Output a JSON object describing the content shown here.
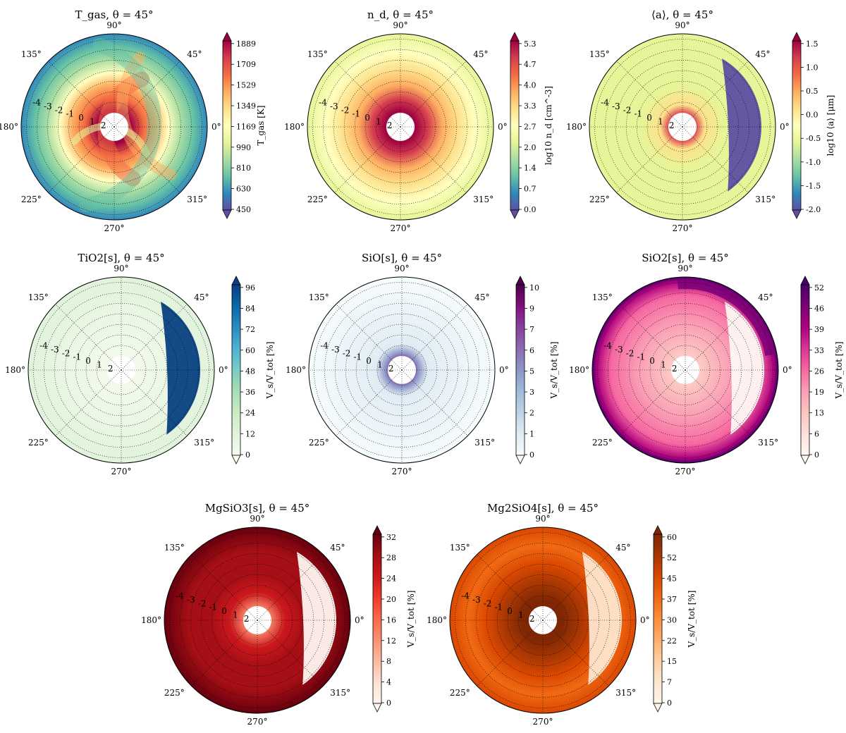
{
  "chart_data": [
    {
      "type": "heatmap",
      "title": "T_gas, θ = 45°",
      "cbar_label": "T_gas [K]",
      "cbar_ticks": [
        "450",
        "630",
        "810",
        "990",
        "1169",
        "1349",
        "1529",
        "1709",
        "1889"
      ],
      "colormap": [
        "#5e4fa2",
        "#3288bd",
        "#66c2a5",
        "#abdda4",
        "#e6f598",
        "#ffffbf",
        "#fee08b",
        "#fdae61",
        "#f46d43",
        "#d53e4f",
        "#9e0142"
      ],
      "angle_labels": [
        "90°",
        "45°",
        "0°",
        "315°",
        "270°",
        "225°",
        "180°",
        "135°"
      ],
      "r_labels": [
        "-4",
        "-3",
        "-2",
        "-1",
        "0",
        "1",
        "2"
      ]
    },
    {
      "type": "heatmap",
      "title": "n_d, θ = 45°",
      "cbar_label": "log10 n_d [cm^-3]",
      "cbar_ticks": [
        "0.0",
        "0.7",
        "1.4",
        "2.0",
        "2.7",
        "3.3",
        "4.0",
        "4.7",
        "5.3"
      ],
      "colormap": [
        "#5e4fa2",
        "#3288bd",
        "#66c2a5",
        "#abdda4",
        "#e6f598",
        "#ffffbf",
        "#fee08b",
        "#fdae61",
        "#f46d43",
        "#d53e4f",
        "#9e0142"
      ],
      "angle_labels": [
        "90°",
        "45°",
        "0°",
        "315°",
        "270°",
        "225°",
        "180°",
        "135°"
      ],
      "r_labels": [
        "-4",
        "-3",
        "-2",
        "-1",
        "0",
        "1",
        "2"
      ]
    },
    {
      "type": "heatmap",
      "title": "⟨a⟩, θ = 45°",
      "cbar_label": "log10 ⟨a⟩ [μm]",
      "cbar_ticks": [
        "-2.0",
        "-1.5",
        "-1.0",
        "-0.5",
        "0.0",
        "0.5",
        "1.0",
        "1.5"
      ],
      "colormap": [
        "#5e4fa2",
        "#3288bd",
        "#66c2a5",
        "#abdda4",
        "#e6f598",
        "#ffffbf",
        "#fee08b",
        "#fdae61",
        "#f46d43",
        "#d53e4f",
        "#9e0142"
      ],
      "angle_labels": [
        "90°",
        "45°",
        "0°",
        "315°",
        "270°",
        "225°",
        "180°",
        "135°"
      ],
      "r_labels": [
        "-4",
        "-3",
        "-2",
        "-1",
        "0",
        "1",
        "2"
      ]
    },
    {
      "type": "heatmap",
      "title": "TiO2[s], θ = 45°",
      "cbar_label": "V_s/V_tot [%]",
      "cbar_ticks": [
        "0",
        "12",
        "24",
        "36",
        "48",
        "60",
        "72",
        "84",
        "96"
      ],
      "colormap": [
        "#f7fcf0",
        "#e0f3db",
        "#ccebc5",
        "#a8ddb5",
        "#7bccc4",
        "#4eb3d3",
        "#2b8cbe",
        "#0868ac",
        "#084081"
      ],
      "angle_labels": [
        "90°",
        "45°",
        "0°",
        "315°",
        "270°",
        "225°",
        "180°",
        "135°"
      ],
      "r_labels": [
        "-4",
        "-3",
        "-2",
        "-1",
        "0",
        "1",
        "2"
      ]
    },
    {
      "type": "heatmap",
      "title": "SiO[s], θ = 45°",
      "cbar_label": "V_s/V_tot [%]",
      "cbar_ticks": [
        "0",
        "1",
        "2",
        "3",
        "5",
        "6",
        "7",
        "9",
        "10"
      ],
      "colormap": [
        "#f7fcfd",
        "#e0ecf4",
        "#bfd3e6",
        "#9ebcda",
        "#8c96c6",
        "#8c6bb1",
        "#88419d",
        "#810f7c",
        "#4d004b"
      ],
      "angle_labels": [
        "90°",
        "45°",
        "0°",
        "315°",
        "270°",
        "225°",
        "180°",
        "135°"
      ],
      "r_labels": [
        "-4",
        "-3",
        "-2",
        "-1",
        "0",
        "1",
        "2"
      ]
    },
    {
      "type": "heatmap",
      "title": "SiO2[s], θ = 45°",
      "cbar_label": "V_s/V_tot [%]",
      "cbar_ticks": [
        "0",
        "6",
        "13",
        "19",
        "26",
        "33",
        "39",
        "46",
        "52"
      ],
      "colormap": [
        "#fff7f3",
        "#fde0dd",
        "#fcc5c0",
        "#fa9fb5",
        "#f768a1",
        "#dd3497",
        "#ae017e",
        "#7a0177",
        "#49006a"
      ],
      "angle_labels": [
        "90°",
        "45°",
        "0°",
        "315°",
        "270°",
        "225°",
        "180°",
        "135°"
      ],
      "r_labels": [
        "-4",
        "-3",
        "-2",
        "-1",
        "0",
        "1",
        "2"
      ]
    },
    {
      "type": "heatmap",
      "title": "MgSiO3[s], θ = 45°",
      "cbar_label": "V_s/V_tot [%]",
      "cbar_ticks": [
        "0",
        "4",
        "8",
        "12",
        "16",
        "20",
        "24",
        "28",
        "32"
      ],
      "colormap": [
        "#fff5f0",
        "#fee0d2",
        "#fcbba1",
        "#fc9272",
        "#fb6a4a",
        "#ef3b2c",
        "#cb181d",
        "#a50f15",
        "#67000d"
      ],
      "angle_labels": [
        "90°",
        "45°",
        "0°",
        "315°",
        "270°",
        "225°",
        "180°",
        "135°"
      ],
      "r_labels": [
        "-4",
        "-3",
        "-2",
        "-1",
        "0",
        "1",
        "2"
      ]
    },
    {
      "type": "heatmap",
      "title": "Mg2SiO4[s], θ = 45°",
      "cbar_label": "V_s/V_tot [%]",
      "cbar_ticks": [
        "0",
        "7",
        "15",
        "22",
        "30",
        "37",
        "45",
        "52",
        "60"
      ],
      "colormap": [
        "#fff5eb",
        "#fee6ce",
        "#fdd0a2",
        "#fdae6b",
        "#fd8d3c",
        "#f16913",
        "#d94801",
        "#a63603",
        "#7f2704"
      ],
      "angle_labels": [
        "90°",
        "45°",
        "0°",
        "315°",
        "270°",
        "225°",
        "180°",
        "135°"
      ],
      "r_labels": [
        "-4",
        "-3",
        "-2",
        "-1",
        "0",
        "1",
        "2"
      ]
    }
  ]
}
